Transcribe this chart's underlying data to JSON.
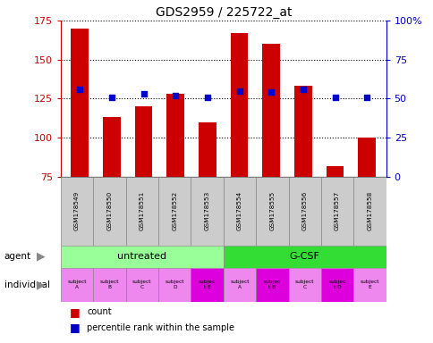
{
  "title": "GDS2959 / 225722_at",
  "samples": [
    "GSM178549",
    "GSM178550",
    "GSM178551",
    "GSM178552",
    "GSM178553",
    "GSM178554",
    "GSM178555",
    "GSM178556",
    "GSM178557",
    "GSM178558"
  ],
  "counts": [
    170,
    113,
    120,
    128,
    110,
    167,
    160,
    133,
    82,
    100
  ],
  "percentile_ranks": [
    56,
    51,
    53,
    52,
    51,
    55,
    54,
    56,
    51,
    51
  ],
  "ylim_left": [
    75,
    175
  ],
  "ylim_right": [
    0,
    100
  ],
  "yticks_left": [
    75,
    100,
    125,
    150,
    175
  ],
  "yticks_right": [
    0,
    25,
    50,
    75,
    100
  ],
  "bar_color": "#cc0000",
  "dot_color": "#0000cc",
  "agent_groups": [
    {
      "label": "untreated",
      "start": 0,
      "end": 5,
      "color": "#99ff99"
    },
    {
      "label": "G-CSF",
      "start": 5,
      "end": 10,
      "color": "#33dd33"
    }
  ],
  "individuals": [
    {
      "label": "subject\nA",
      "idx": 0,
      "color": "#ee88ee"
    },
    {
      "label": "subject\nB",
      "idx": 1,
      "color": "#ee88ee"
    },
    {
      "label": "subject\nC",
      "idx": 2,
      "color": "#ee88ee"
    },
    {
      "label": "subject\nD",
      "idx": 3,
      "color": "#ee88ee"
    },
    {
      "label": "subjec\nt E",
      "idx": 4,
      "color": "#dd00dd"
    },
    {
      "label": "subject\nA",
      "idx": 5,
      "color": "#ee88ee"
    },
    {
      "label": "subjec\nt B",
      "idx": 6,
      "color": "#dd00dd"
    },
    {
      "label": "subject\nC",
      "idx": 7,
      "color": "#ee88ee"
    },
    {
      "label": "subjec\nt D",
      "idx": 8,
      "color": "#dd00dd"
    },
    {
      "label": "subject\nE",
      "idx": 9,
      "color": "#ee88ee"
    }
  ],
  "legend_count_color": "#cc0000",
  "legend_dot_color": "#0000cc",
  "tick_color_left": "#cc0000",
  "tick_color_right": "#0000cc",
  "bar_width": 0.55,
  "sample_bg_color": "#cccccc",
  "fig_width": 4.85,
  "fig_height": 3.84,
  "fig_dpi": 100
}
